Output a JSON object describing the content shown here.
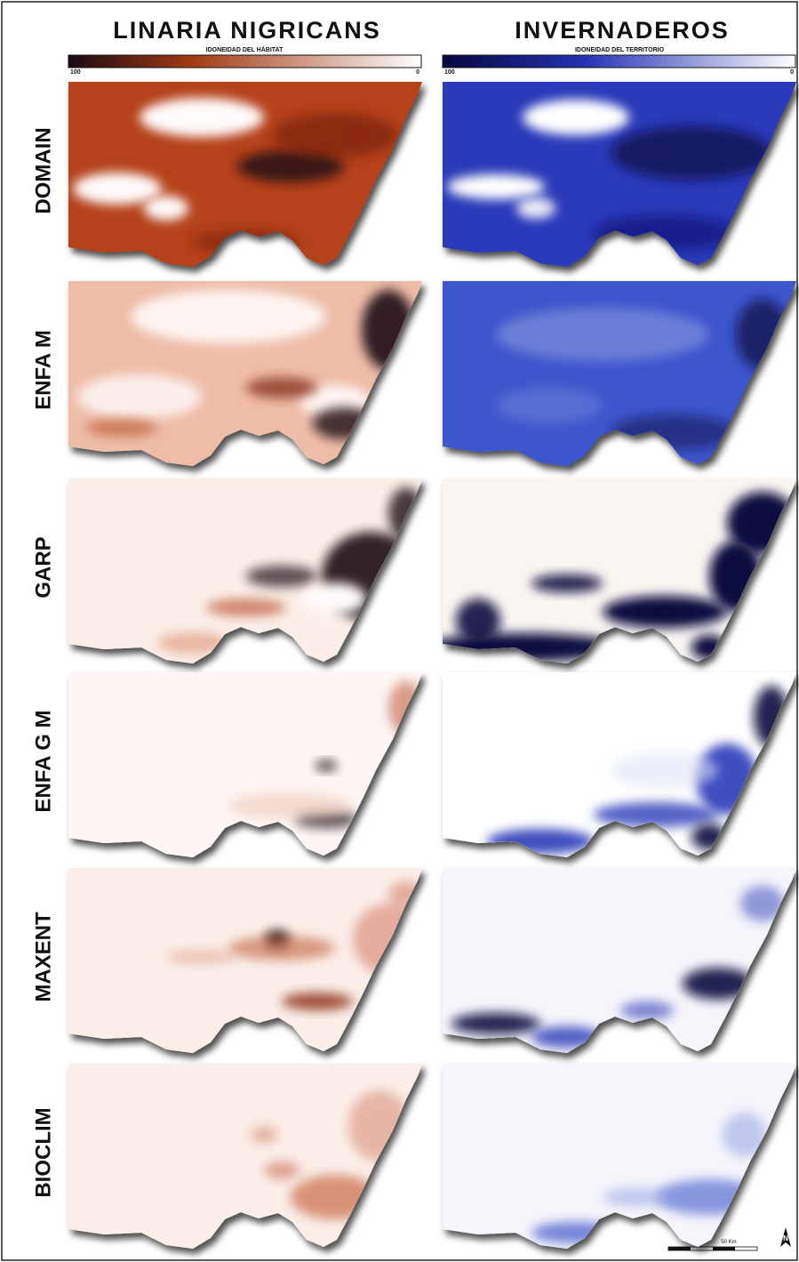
{
  "header": {
    "left_title": "LINARIA NIGRICANS",
    "right_title": "INVERNADEROS"
  },
  "legends": [
    {
      "title": "IDONEIDAD DEL HÁBITAT",
      "min_label": "100",
      "max_label": "0"
    },
    {
      "title": "IDONEIDAD DEL TERRITORIO",
      "min_label": "100",
      "max_label": "0"
    }
  ],
  "rows": [
    "DOMAIN",
    "ENFA M",
    "GARP",
    "ENFA G M",
    "MAXENT",
    "BIOCLIM"
  ],
  "scale_bar": {
    "label": "50 Km"
  },
  "north_arrow": {
    "label": "N"
  }
}
